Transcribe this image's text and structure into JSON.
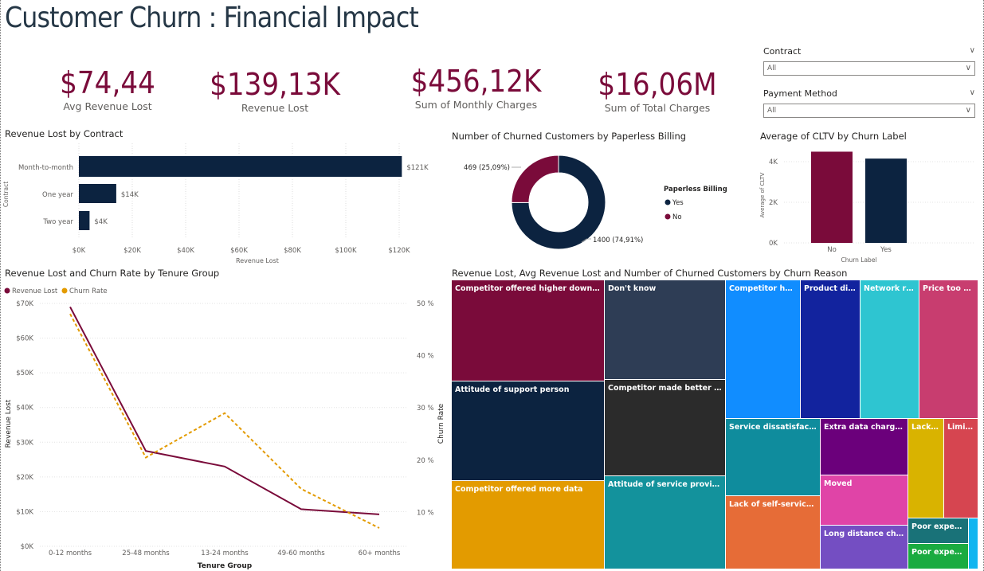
{
  "page": {
    "title": "Customer Churn : Financial Impact"
  },
  "colors": {
    "navy": "#0c2340",
    "maroon": "#7a0b3a",
    "orange": "#e39b00",
    "title": "#253746"
  },
  "kpis": [
    {
      "value": "$74,44",
      "label": "Avg Revenue Lost"
    },
    {
      "value": "$139,13K",
      "label": "Revenue Lost"
    },
    {
      "value": "$456,12K",
      "label": "Sum of Monthly Charges"
    },
    {
      "value": "$16,06M",
      "label": "Sum of Total Charges"
    }
  ],
  "slicers": [
    {
      "label": "Contract",
      "value": "All"
    },
    {
      "label": "Payment Method",
      "value": "All"
    }
  ],
  "contract_chart": {
    "title": "Revenue Lost by Contract",
    "type": "bar",
    "ylabel": "Contract",
    "xlabel": "Revenue Lost",
    "categories": [
      "Month-to-month",
      "One year",
      "Two year"
    ],
    "values": [
      121,
      14,
      4
    ],
    "value_labels": [
      "$121K",
      "$14K",
      "$4K"
    ],
    "xlim": [
      0,
      120
    ],
    "ticks": [
      0,
      20,
      40,
      60,
      80,
      100,
      120
    ],
    "tick_labels": [
      "$0K",
      "$20K",
      "$40K",
      "$60K",
      "$80K",
      "$100K",
      "$120K"
    ]
  },
  "donut_chart": {
    "title": "Number of Churned Customers by Paperless Billing",
    "type": "pie",
    "legend_title": "Paperless Billing",
    "slices": [
      {
        "name": "Yes",
        "value": 1400,
        "label": "1400 (74,91%)",
        "color": "#0c2340"
      },
      {
        "name": "No",
        "value": 469,
        "label": "469 (25,09%)",
        "color": "#7a0b3a"
      }
    ]
  },
  "cltv_chart": {
    "title": "Average of CLTV by Churn Label",
    "type": "bar",
    "ylabel": "Average of CLTV",
    "xlabel": "Churn Label",
    "categories": [
      "No",
      "Yes"
    ],
    "values": [
      4490,
      4150
    ],
    "colors": [
      "#7a0b3a",
      "#0c2340"
    ],
    "ylim": [
      0,
      4900
    ],
    "ticks": [
      0,
      2000,
      4000
    ],
    "tick_labels": [
      "0K",
      "2K",
      "4K"
    ]
  },
  "tenure_chart": {
    "title": "Revenue Lost and Churn Rate by Tenure Group",
    "type": "line",
    "legend": [
      "Revenue Lost",
      "Churn Rate"
    ],
    "xlabel": "Tenure Group",
    "ylabel": "Revenue Lost",
    "y2label": "Churn Rate",
    "categories": [
      "0-12 months",
      "25-48 months",
      "13-24 months",
      "49-60 months",
      "60+ months"
    ],
    "revenue_lost": [
      69000,
      27500,
      23000,
      10700,
      9200
    ],
    "churn_rate": [
      48,
      20.5,
      29,
      14.5,
      7
    ],
    "ylim": [
      0,
      70000
    ],
    "y_ticks": [
      0,
      10000,
      20000,
      30000,
      40000,
      50000,
      60000,
      70000
    ],
    "y_tick_labels": [
      "$0K",
      "$10K",
      "$20K",
      "$30K",
      "$40K",
      "$50K",
      "$60K",
      "$70K"
    ],
    "y2lim": [
      3.5,
      50
    ],
    "y2_ticks": [
      10,
      20,
      30,
      40,
      50
    ],
    "y2_tick_labels": [
      "10 %",
      "20 %",
      "30 %",
      "40 %",
      "50 %"
    ]
  },
  "treemap": {
    "title": "Revenue Lost, Avg Revenue Lost and Number of Churned Customers by Churn Reason",
    "items": [
      {
        "label": "Competitor offered higher download sp...",
        "color": "#7a0b3a"
      },
      {
        "label": "Attitude of support person",
        "color": "#0c2340"
      },
      {
        "label": "Competitor offered more data",
        "color": "#e39b00"
      },
      {
        "label": "Don't know",
        "color": "#2e3d55"
      },
      {
        "label": "Competitor made better offer",
        "color": "#2b2b2b"
      },
      {
        "label": "Attitude of service provider",
        "color": "#13929c"
      },
      {
        "label": "Competitor had b...",
        "color": "#118dff"
      },
      {
        "label": "Product dissa...",
        "color": "#12239e"
      },
      {
        "label": "Network relia...",
        "color": "#2ec5d1"
      },
      {
        "label": "Price too high",
        "color": "#c83d6f"
      },
      {
        "label": "Service dissatisfaction",
        "color": "#0f8c9d"
      },
      {
        "label": "Lack of self-service on ...",
        "color": "#e66c37"
      },
      {
        "label": "Extra data charges",
        "color": "#6b007b"
      },
      {
        "label": "Moved",
        "color": "#e044a7"
      },
      {
        "label": "Long distance charges",
        "color": "#744ec2"
      },
      {
        "label": "Lack o...",
        "color": "#d9b300"
      },
      {
        "label": "Limite...",
        "color": "#d64550"
      },
      {
        "label": "Poor expertis...",
        "color": "#197278"
      },
      {
        "label": "Poor expertis...",
        "color": "#1aab40"
      }
    ]
  }
}
